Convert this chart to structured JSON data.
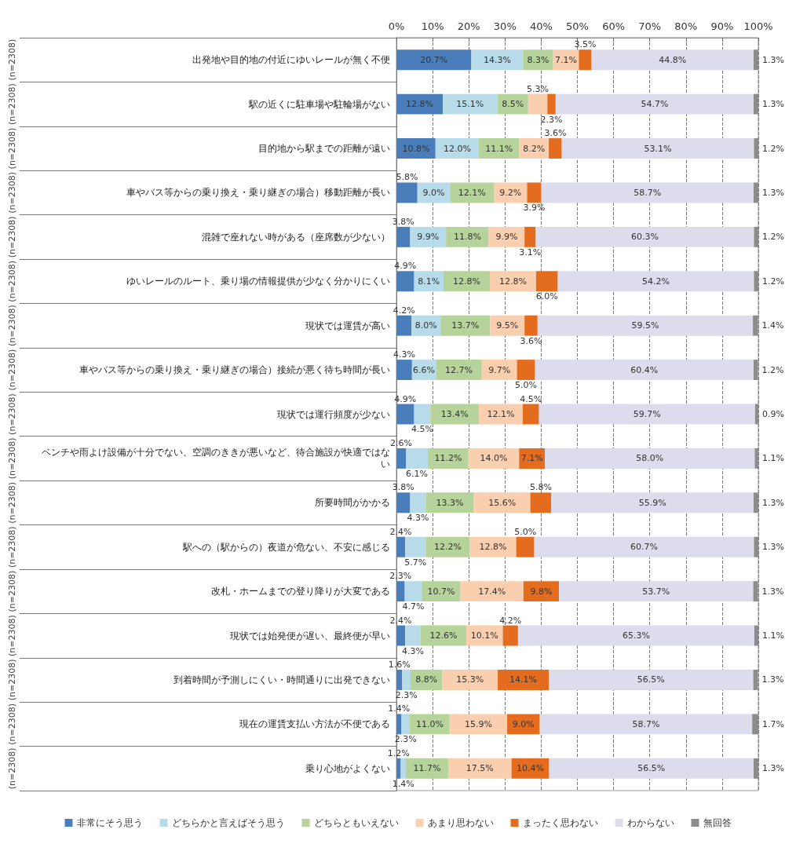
{
  "chart_data": {
    "type": "bar",
    "orientation": "horizontal",
    "stacked": true,
    "categories": [
      "出発地や目的地の付近にゆいレールが無く不便",
      "駅の近くに駐車場や駐輪場がない",
      "目的地から駅までの距離が遠い",
      "車やバス等からの乗り換え・乗り継ぎの場合）移動距離が長い",
      "混雑で座れない時がある（座席数が少ない）",
      "ゆいレールのルート、乗り場の情報提供が少なく分かりにくい",
      "現状では運賃が高い",
      "車やバス等からの乗り換え・乗り継ぎの場合）接続が悪く待ち時間が長い",
      "現状では運行頻度が少ない",
      "ベンチや雨よけ設備が十分でない、空調のききが悪いなど、待合施設が快適ではない",
      "所要時間がかかる",
      "駅への（駅からの）夜道が危ない、不安に感じる",
      "改札・ホームまでの登り降りが大変である",
      "現状では始発便が遅い、最終便が早い",
      "到着時間が予測しにくい・時間通りに出発できない",
      "現在の運賃支払い方法が不便である",
      "乗り心地がよくない"
    ],
    "annotations": [
      "(n=2308)",
      "(n=2308)",
      "(n=2308)",
      "(n=2308)",
      "(n=2308)",
      "(n=2308)",
      "(n=2308)",
      "(n=2308)",
      "(n=2308)",
      "(n=2308)",
      "(n=2308)",
      "(n=2308)",
      "(n=2308)",
      "(n=2308)",
      "(n=2308)",
      "(n=2308)",
      "(n=2308)"
    ],
    "series": [
      {
        "name": "非常にそう思う",
        "color": "#4a7ebb",
        "values": [
          20.7,
          12.8,
          10.8,
          5.8,
          3.8,
          4.9,
          4.2,
          4.3,
          4.9,
          2.6,
          3.8,
          2.4,
          2.3,
          2.4,
          1.6,
          1.4,
          1.2
        ],
        "value_labels": [
          "20.7%",
          "12.8%",
          "10.8%",
          "5.8%",
          "3.8%",
          "4.9%",
          "4.2%",
          "4.3%",
          "4.9%",
          "2.6%",
          "3.8%",
          "2.4%",
          "2.3%",
          "2.4%",
          "1.6%",
          "1.4%",
          "1.2%"
        ]
      },
      {
        "name": "どちらかと言えばそう思う",
        "color": "#b7dbe8",
        "values": [
          14.3,
          15.1,
          12.0,
          9.0,
          9.9,
          8.1,
          8.0,
          6.6,
          4.5,
          6.1,
          4.3,
          5.7,
          4.7,
          4.3,
          2.3,
          2.3,
          1.4
        ],
        "value_labels": [
          "14.3%",
          "15.1%",
          "12.0%",
          "9.0%",
          "9.9%",
          "8.1%",
          "8.0%",
          "6.6%",
          "4.5%",
          "6.1%",
          "4.3%",
          "5.7%",
          "4.7%",
          "4.3%",
          "2.3%",
          "2.3%",
          "1.4%"
        ]
      },
      {
        "name": "どちらともいえない",
        "color": "#b5d39a",
        "values": [
          8.3,
          8.5,
          11.1,
          12.1,
          11.8,
          12.8,
          13.7,
          12.7,
          13.4,
          11.2,
          13.3,
          12.2,
          10.7,
          12.6,
          8.8,
          11.0,
          11.7
        ],
        "value_labels": [
          "8.3%",
          "8.5%",
          "11.1%",
          "12.1%",
          "11.8%",
          "12.8%",
          "13.7%",
          "12.7%",
          "13.4%",
          "11.2%",
          "13.3%",
          "12.2%",
          "10.7%",
          "12.6%",
          "8.8%",
          "11.0%",
          "11.7%"
        ]
      },
      {
        "name": "あまり思わない",
        "color": "#f9cfb0",
        "values": [
          7.1,
          5.3,
          8.2,
          9.2,
          9.9,
          12.8,
          9.5,
          9.7,
          12.1,
          14.0,
          15.6,
          12.8,
          17.4,
          10.1,
          15.3,
          15.9,
          17.5
        ],
        "value_labels": [
          "7.1%",
          "5.3%",
          "8.2%",
          "9.2%",
          "9.9%",
          "12.8%",
          "9.5%",
          "9.7%",
          "12.1%",
          "14.0%",
          "15.6%",
          "12.8%",
          "17.4%",
          "10.1%",
          "15.3%",
          "15.9%",
          "17.5%"
        ]
      },
      {
        "name": "まったく思わない",
        "color": "#e46c1e",
        "values": [
          3.5,
          2.3,
          3.6,
          3.9,
          3.1,
          6.0,
          3.6,
          5.0,
          4.5,
          7.1,
          5.8,
          5.0,
          9.8,
          4.2,
          14.1,
          9.0,
          10.4
        ],
        "value_labels": [
          "3.5%",
          "2.3%",
          "3.6%",
          "3.9%",
          "3.1%",
          "6.0%",
          "3.6%",
          "5.0%",
          "4.5%",
          "7.1%",
          "5.8%",
          "5.0%",
          "9.8%",
          "4.2%",
          "14.1%",
          "9.0%",
          "10.4%"
        ]
      },
      {
        "name": "わからない",
        "color": "#dcdcec",
        "values": [
          44.8,
          54.7,
          53.1,
          58.7,
          60.3,
          54.2,
          59.5,
          60.4,
          59.7,
          58.0,
          55.9,
          60.7,
          53.7,
          65.3,
          56.5,
          58.7,
          56.5
        ],
        "value_labels": [
          "44.8%",
          "54.7%",
          "53.1%",
          "58.7%",
          "60.3%",
          "54.2%",
          "59.5%",
          "60.4%",
          "59.7%",
          "58.0%",
          "55.9%",
          "60.7%",
          "53.7%",
          "65.3%",
          "56.5%",
          "58.7%",
          "56.5%"
        ]
      },
      {
        "name": "無回答",
        "color": "#8c8c8c",
        "values": [
          1.3,
          1.3,
          1.2,
          1.3,
          1.2,
          1.2,
          1.4,
          1.2,
          0.9,
          1.1,
          1.3,
          1.3,
          1.3,
          1.1,
          1.3,
          1.7,
          1.3
        ],
        "value_labels": [
          "1.3%",
          "1.3%",
          "1.2%",
          "1.3%",
          "1.2%",
          "1.2%",
          "1.4%",
          "1.2%",
          "0.9%",
          "1.1%",
          "1.3%",
          "1.3%",
          "1.3%",
          "1.1%",
          "1.3%",
          "1.7%",
          "1.3%"
        ]
      }
    ],
    "xlim": [
      0,
      100
    ],
    "xticks": [
      {
        "value": 0,
        "label": "0%"
      },
      {
        "value": 10,
        "label": "10%"
      },
      {
        "value": 20,
        "label": "20%"
      },
      {
        "value": 30,
        "label": "30%"
      },
      {
        "value": 40,
        "label": "40%"
      },
      {
        "value": 50,
        "label": "50%"
      },
      {
        "value": 60,
        "label": "60%"
      },
      {
        "value": 70,
        "label": "70%"
      },
      {
        "value": 80,
        "label": "80%"
      },
      {
        "value": 90,
        "label": "90%"
      },
      {
        "value": 100,
        "label": "100%"
      }
    ],
    "grid": "x",
    "legend": "bottom"
  }
}
